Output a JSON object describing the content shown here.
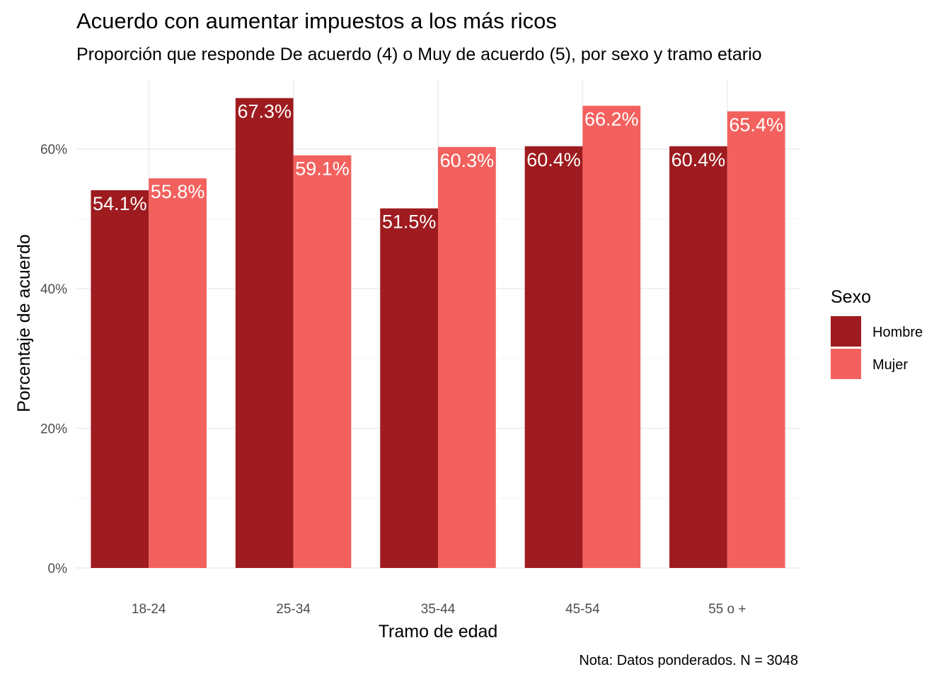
{
  "chart_data": {
    "type": "bar",
    "title": "Acuerdo con aumentar impuestos a los más ricos",
    "subtitle": "Proporción que responde De acuerdo (4) o Muy de acuerdo (5), por sexo y tramo etario",
    "xlabel": "Tramo de edad",
    "ylabel": "Porcentaje de acuerdo",
    "caption": "Nota: Datos ponderados. N = 3048",
    "categories": [
      "18-24",
      "25-34",
      "35-44",
      "45-54",
      "55 o +"
    ],
    "series": [
      {
        "name": "Hombre",
        "color": "#9e1b1f",
        "values": [
          54.1,
          67.3,
          51.5,
          60.4,
          60.4
        ]
      },
      {
        "name": "Mujer",
        "color": "#f2615e",
        "values": [
          55.8,
          59.1,
          60.3,
          66.2,
          65.4
        ]
      }
    ],
    "ylim": [
      0,
      70
    ],
    "yticks": [
      0,
      20,
      40,
      60
    ],
    "ytick_labels": [
      "0%",
      "20%",
      "40%",
      "60%"
    ],
    "value_suffix": "%",
    "legend": {
      "title": "Sexo",
      "position": "right"
    },
    "grid": true
  }
}
